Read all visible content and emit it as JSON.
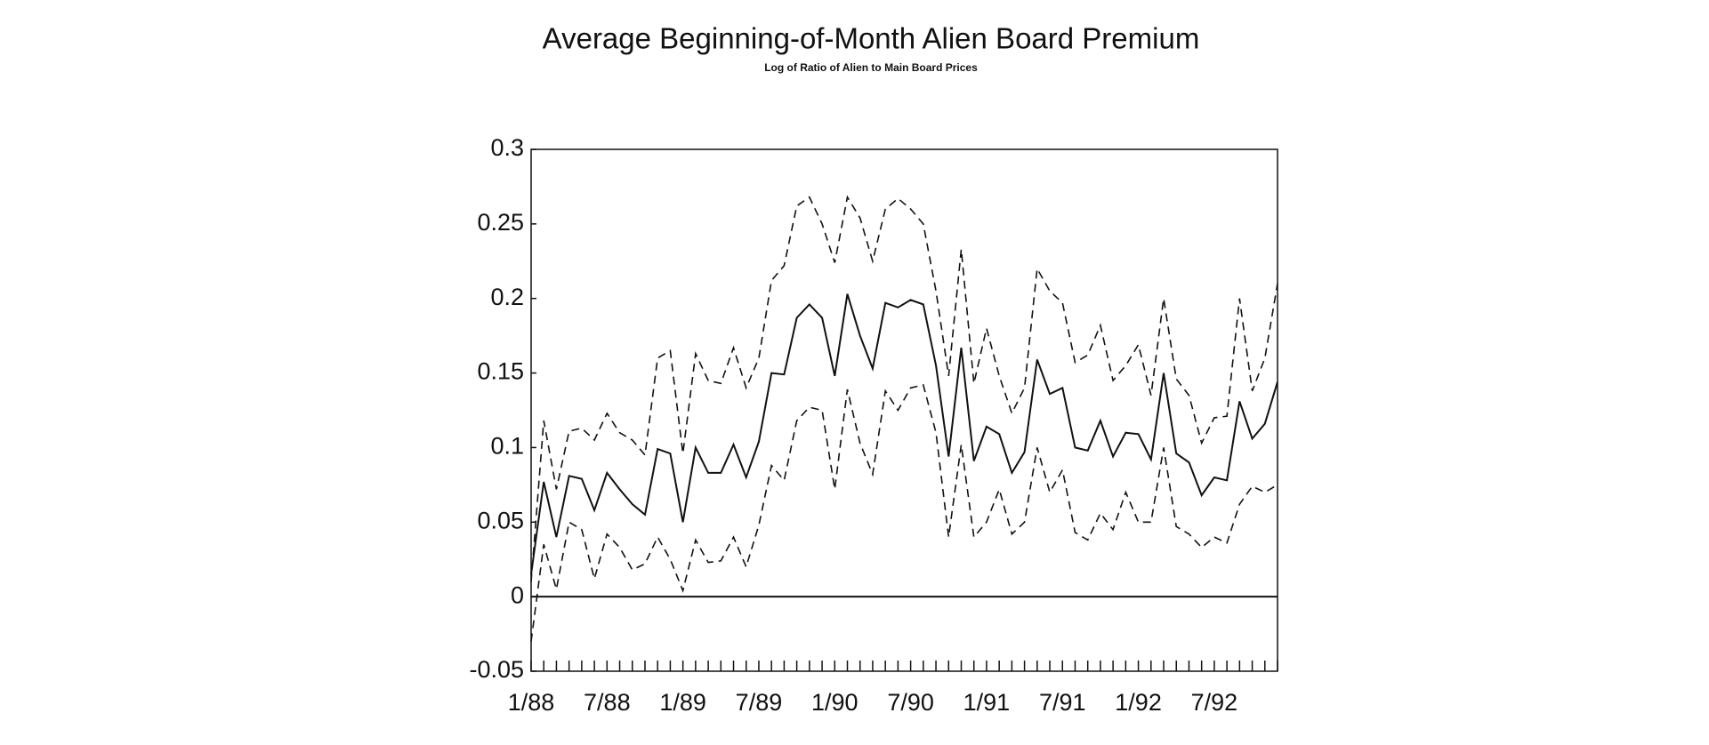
{
  "chart_data": {
    "type": "line",
    "title": "Average Beginning-of-Month Alien Board Premium",
    "subtitle": "Log of Ratio of Alien to Main Board Prices",
    "categories": [
      "1/88",
      null,
      null,
      null,
      null,
      null,
      "7/88",
      null,
      null,
      null,
      null,
      null,
      "1/89",
      null,
      null,
      null,
      null,
      null,
      "7/89",
      null,
      null,
      null,
      null,
      null,
      "1/90",
      null,
      null,
      null,
      null,
      null,
      "7/90",
      null,
      null,
      null,
      null,
      null,
      "1/91",
      null,
      null,
      null,
      null,
      null,
      "7/91",
      null,
      null,
      null,
      null,
      null,
      "1/92",
      null,
      null,
      null,
      null,
      null,
      "7/92",
      null,
      null,
      null,
      null,
      null
    ],
    "series": [
      {
        "color": "#111111",
        "dashed": false,
        "values": [
          0.015,
          0.077,
          0.04,
          0.081,
          0.079,
          0.058,
          0.083,
          0.072,
          0.062,
          0.055,
          0.099,
          0.096,
          0.05,
          0.1,
          0.083,
          0.083,
          0.102,
          0.08,
          0.104,
          0.15,
          0.149,
          0.187,
          0.196,
          0.187,
          0.148,
          0.203,
          0.175,
          0.153,
          0.197,
          0.194,
          0.199,
          0.196,
          0.155,
          0.094,
          0.167,
          0.091,
          0.114,
          0.109,
          0.083,
          0.097,
          0.159,
          0.136,
          0.14,
          0.1,
          0.098,
          0.118,
          0.094,
          0.11,
          0.109,
          0.092,
          0.15,
          0.096,
          0.09,
          0.068,
          0.08,
          0.078,
          0.131,
          0.106,
          0.116,
          0.144
        ]
      },
      {
        "color": "#111111",
        "dashed": true,
        "values": [
          0.01,
          0.118,
          0.072,
          0.111,
          0.113,
          0.105,
          0.123,
          0.11,
          0.105,
          0.095,
          0.16,
          0.165,
          0.096,
          0.163,
          0.145,
          0.143,
          0.167,
          0.14,
          0.16,
          0.212,
          0.222,
          0.262,
          0.268,
          0.25,
          0.224,
          0.268,
          0.254,
          0.225,
          0.26,
          0.267,
          0.26,
          0.25,
          0.205,
          0.148,
          0.233,
          0.143,
          0.18,
          0.148,
          0.123,
          0.14,
          0.22,
          0.205,
          0.197,
          0.157,
          0.162,
          0.182,
          0.145,
          0.155,
          0.169,
          0.135,
          0.2,
          0.146,
          0.135,
          0.103,
          0.12,
          0.121,
          0.2,
          0.138,
          0.16,
          0.21
        ]
      },
      {
        "color": "#111111",
        "dashed": true,
        "values": [
          -0.03,
          0.035,
          0.005,
          0.05,
          0.045,
          0.012,
          0.042,
          0.033,
          0.018,
          0.022,
          0.04,
          0.025,
          0.004,
          0.038,
          0.023,
          0.024,
          0.04,
          0.02,
          0.048,
          0.088,
          0.078,
          0.118,
          0.127,
          0.125,
          0.072,
          0.139,
          0.103,
          0.082,
          0.138,
          0.125,
          0.14,
          0.142,
          0.11,
          0.04,
          0.102,
          0.04,
          0.05,
          0.072,
          0.042,
          0.05,
          0.1,
          0.07,
          0.085,
          0.043,
          0.038,
          0.056,
          0.045,
          0.07,
          0.05,
          0.05,
          0.1,
          0.047,
          0.042,
          0.033,
          0.04,
          0.036,
          0.062,
          0.074,
          0.07,
          0.075
        ]
      }
    ],
    "ylim": [
      -0.05,
      0.3
    ],
    "yticks": [
      -0.05,
      0,
      0.05,
      0.1,
      0.15,
      0.2,
      0.25,
      0.3
    ],
    "hlines": [
      0
    ],
    "grid": false
  }
}
